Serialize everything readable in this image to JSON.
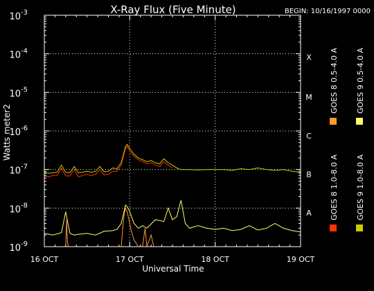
{
  "chart_data": {
    "type": "line",
    "title": "X-Ray Flux (Five Minute)",
    "subtitle": "BEGIN: 10/16/1997 0000",
    "xlabel": "Universal Time",
    "ylabel": "Watts meter2",
    "y_scale": "log",
    "ylim": [
      1e-09,
      0.001
    ],
    "x_ticks": [
      "16 OCT",
      "17 OCT",
      "18 OCT",
      "19 OCT"
    ],
    "y_ticks": [
      {
        "mantissa": "10",
        "exp": "-3"
      },
      {
        "mantissa": "10",
        "exp": "-4"
      },
      {
        "mantissa": "10",
        "exp": "-5"
      },
      {
        "mantissa": "10",
        "exp": "-6"
      },
      {
        "mantissa": "10",
        "exp": "-7"
      },
      {
        "mantissa": "10",
        "exp": "-8"
      },
      {
        "mantissa": "10",
        "exp": "-9"
      }
    ],
    "flare_classes": [
      "X",
      "M",
      "C",
      "B",
      "A"
    ],
    "grid": true,
    "legend": [
      {
        "name": "GOES 8 1.0-8.0 A",
        "color": "#ff3300"
      },
      {
        "name": "GOES 8 0.5-4.0 A",
        "color": "#ff9933"
      },
      {
        "name": "GOES 9 1.0-8.0 A",
        "color": "#cccc00"
      },
      {
        "name": "GOES 9 0.5-4.0 A",
        "color": "#ffff66"
      }
    ],
    "series": [
      {
        "color": "#cccc00",
        "x": [
          0,
          0.05,
          0.1,
          0.15,
          0.2,
          0.25,
          0.3,
          0.35,
          0.4,
          0.45,
          0.5,
          0.55,
          0.6,
          0.65,
          0.7,
          0.72,
          0.75,
          0.8,
          0.85,
          0.9,
          0.95,
          0.97,
          1.0,
          1.05,
          1.1,
          1.15,
          1.2,
          1.25,
          1.3,
          1.35,
          1.4,
          1.45,
          1.5,
          1.55,
          1.6,
          1.65,
          1.7,
          1.8,
          1.9,
          2.0,
          2.1,
          2.2,
          2.3,
          2.4,
          2.5,
          2.6,
          2.7,
          2.8,
          2.9,
          3.0
        ],
        "y": [
          8.5e-08,
          8e-08,
          8.2e-08,
          8.5e-08,
          1.3e-07,
          8.5e-08,
          8.3e-08,
          1.2e-07,
          8.2e-08,
          8.5e-08,
          9e-08,
          8.5e-08,
          9e-08,
          1.2e-07,
          8.8e-08,
          8.8e-08,
          9e-08,
          1.1e-07,
          1.05e-07,
          1.5e-07,
          4e-07,
          4.5e-07,
          3.5e-07,
          2.5e-07,
          2e-07,
          1.8e-07,
          1.6e-07,
          1.7e-07,
          1.5e-07,
          1.4e-07,
          1.9e-07,
          1.5e-07,
          1.3e-07,
          1.1e-07,
          1e-07,
          1e-07,
          1e-07,
          9.8e-08,
          1e-07,
          1e-07,
          1e-07,
          9.5e-08,
          1.05e-07,
          1e-07,
          1.1e-07,
          1e-07,
          9.5e-08,
          1e-07,
          9e-08,
          8.5e-08
        ]
      },
      {
        "color": "#ff3300",
        "x": [
          0,
          0.05,
          0.1,
          0.15,
          0.2,
          0.25,
          0.3,
          0.35,
          0.4,
          0.45,
          0.5,
          0.55,
          0.6,
          0.65,
          0.7,
          0.72,
          0.75,
          0.8,
          0.85,
          0.9,
          0.95,
          0.97,
          1.0,
          1.05,
          1.1,
          1.15,
          1.2,
          1.25,
          1.3,
          1.35,
          1.4,
          1.45,
          1.5
        ],
        "y": [
          6.8e-08,
          6.5e-08,
          7e-08,
          7e-08,
          1.1e-07,
          6.8e-08,
          6.8e-08,
          1e-07,
          6.5e-08,
          7e-08,
          7.5e-08,
          7e-08,
          7.5e-08,
          1e-07,
          7.2e-08,
          7.5e-08,
          7.5e-08,
          9e-08,
          9e-08,
          1.3e-07,
          3.5e-07,
          4e-07,
          3e-07,
          2.2e-07,
          1.8e-07,
          1.6e-07,
          1.4e-07,
          1.5e-07,
          1.3e-07,
          1.2e-07,
          1.6e-07,
          1.3e-07,
          1.1e-07
        ]
      },
      {
        "color": "#ffff66",
        "x": [
          0,
          0.1,
          0.2,
          0.25,
          0.3,
          0.35,
          0.4,
          0.5,
          0.6,
          0.7,
          0.8,
          0.85,
          0.9,
          0.95,
          0.98,
          1.0,
          1.05,
          1.1,
          1.15,
          1.2,
          1.3,
          1.4,
          1.45,
          1.5,
          1.55,
          1.6,
          1.65,
          1.7,
          1.8,
          1.9,
          2.0,
          2.1,
          2.2,
          2.3,
          2.4,
          2.5,
          2.6,
          2.7,
          2.8,
          2.9,
          3.0
        ],
        "y": [
          2.2e-09,
          2e-09,
          2.3e-09,
          8e-09,
          2.2e-09,
          2e-09,
          2.1e-09,
          2.2e-09,
          2e-09,
          2.5e-09,
          2.6e-09,
          2.8e-09,
          4e-09,
          1.2e-08,
          1e-08,
          8e-09,
          4e-09,
          3e-09,
          3.5e-09,
          3e-09,
          5e-09,
          4.5e-09,
          1e-08,
          5e-09,
          6e-09,
          1.6e-08,
          4e-09,
          3e-09,
          3.5e-09,
          3e-09,
          2.8e-09,
          3e-09,
          2.6e-09,
          2.8e-09,
          3.5e-09,
          2.7e-09,
          3e-09,
          4e-09,
          3e-09,
          2.6e-09,
          2.4e-09
        ]
      },
      {
        "color": "#ff9933",
        "x": [
          0.25,
          0.26,
          0.27,
          0.28,
          0.3,
          0.9,
          0.93,
          0.95,
          0.97,
          1.0,
          1.02,
          1.05,
          1.1,
          1.15,
          1.18,
          1.2,
          1.25,
          1.28
        ],
        "y": [
          1e-09,
          5e-09,
          1.4e-09,
          1e-09,
          1e-09,
          1e-09,
          6e-09,
          1e-08,
          8e-09,
          4e-09,
          2.5e-09,
          1.5e-09,
          1e-09,
          1e-09,
          3e-09,
          1e-09,
          2e-09,
          1e-09
        ]
      }
    ]
  }
}
